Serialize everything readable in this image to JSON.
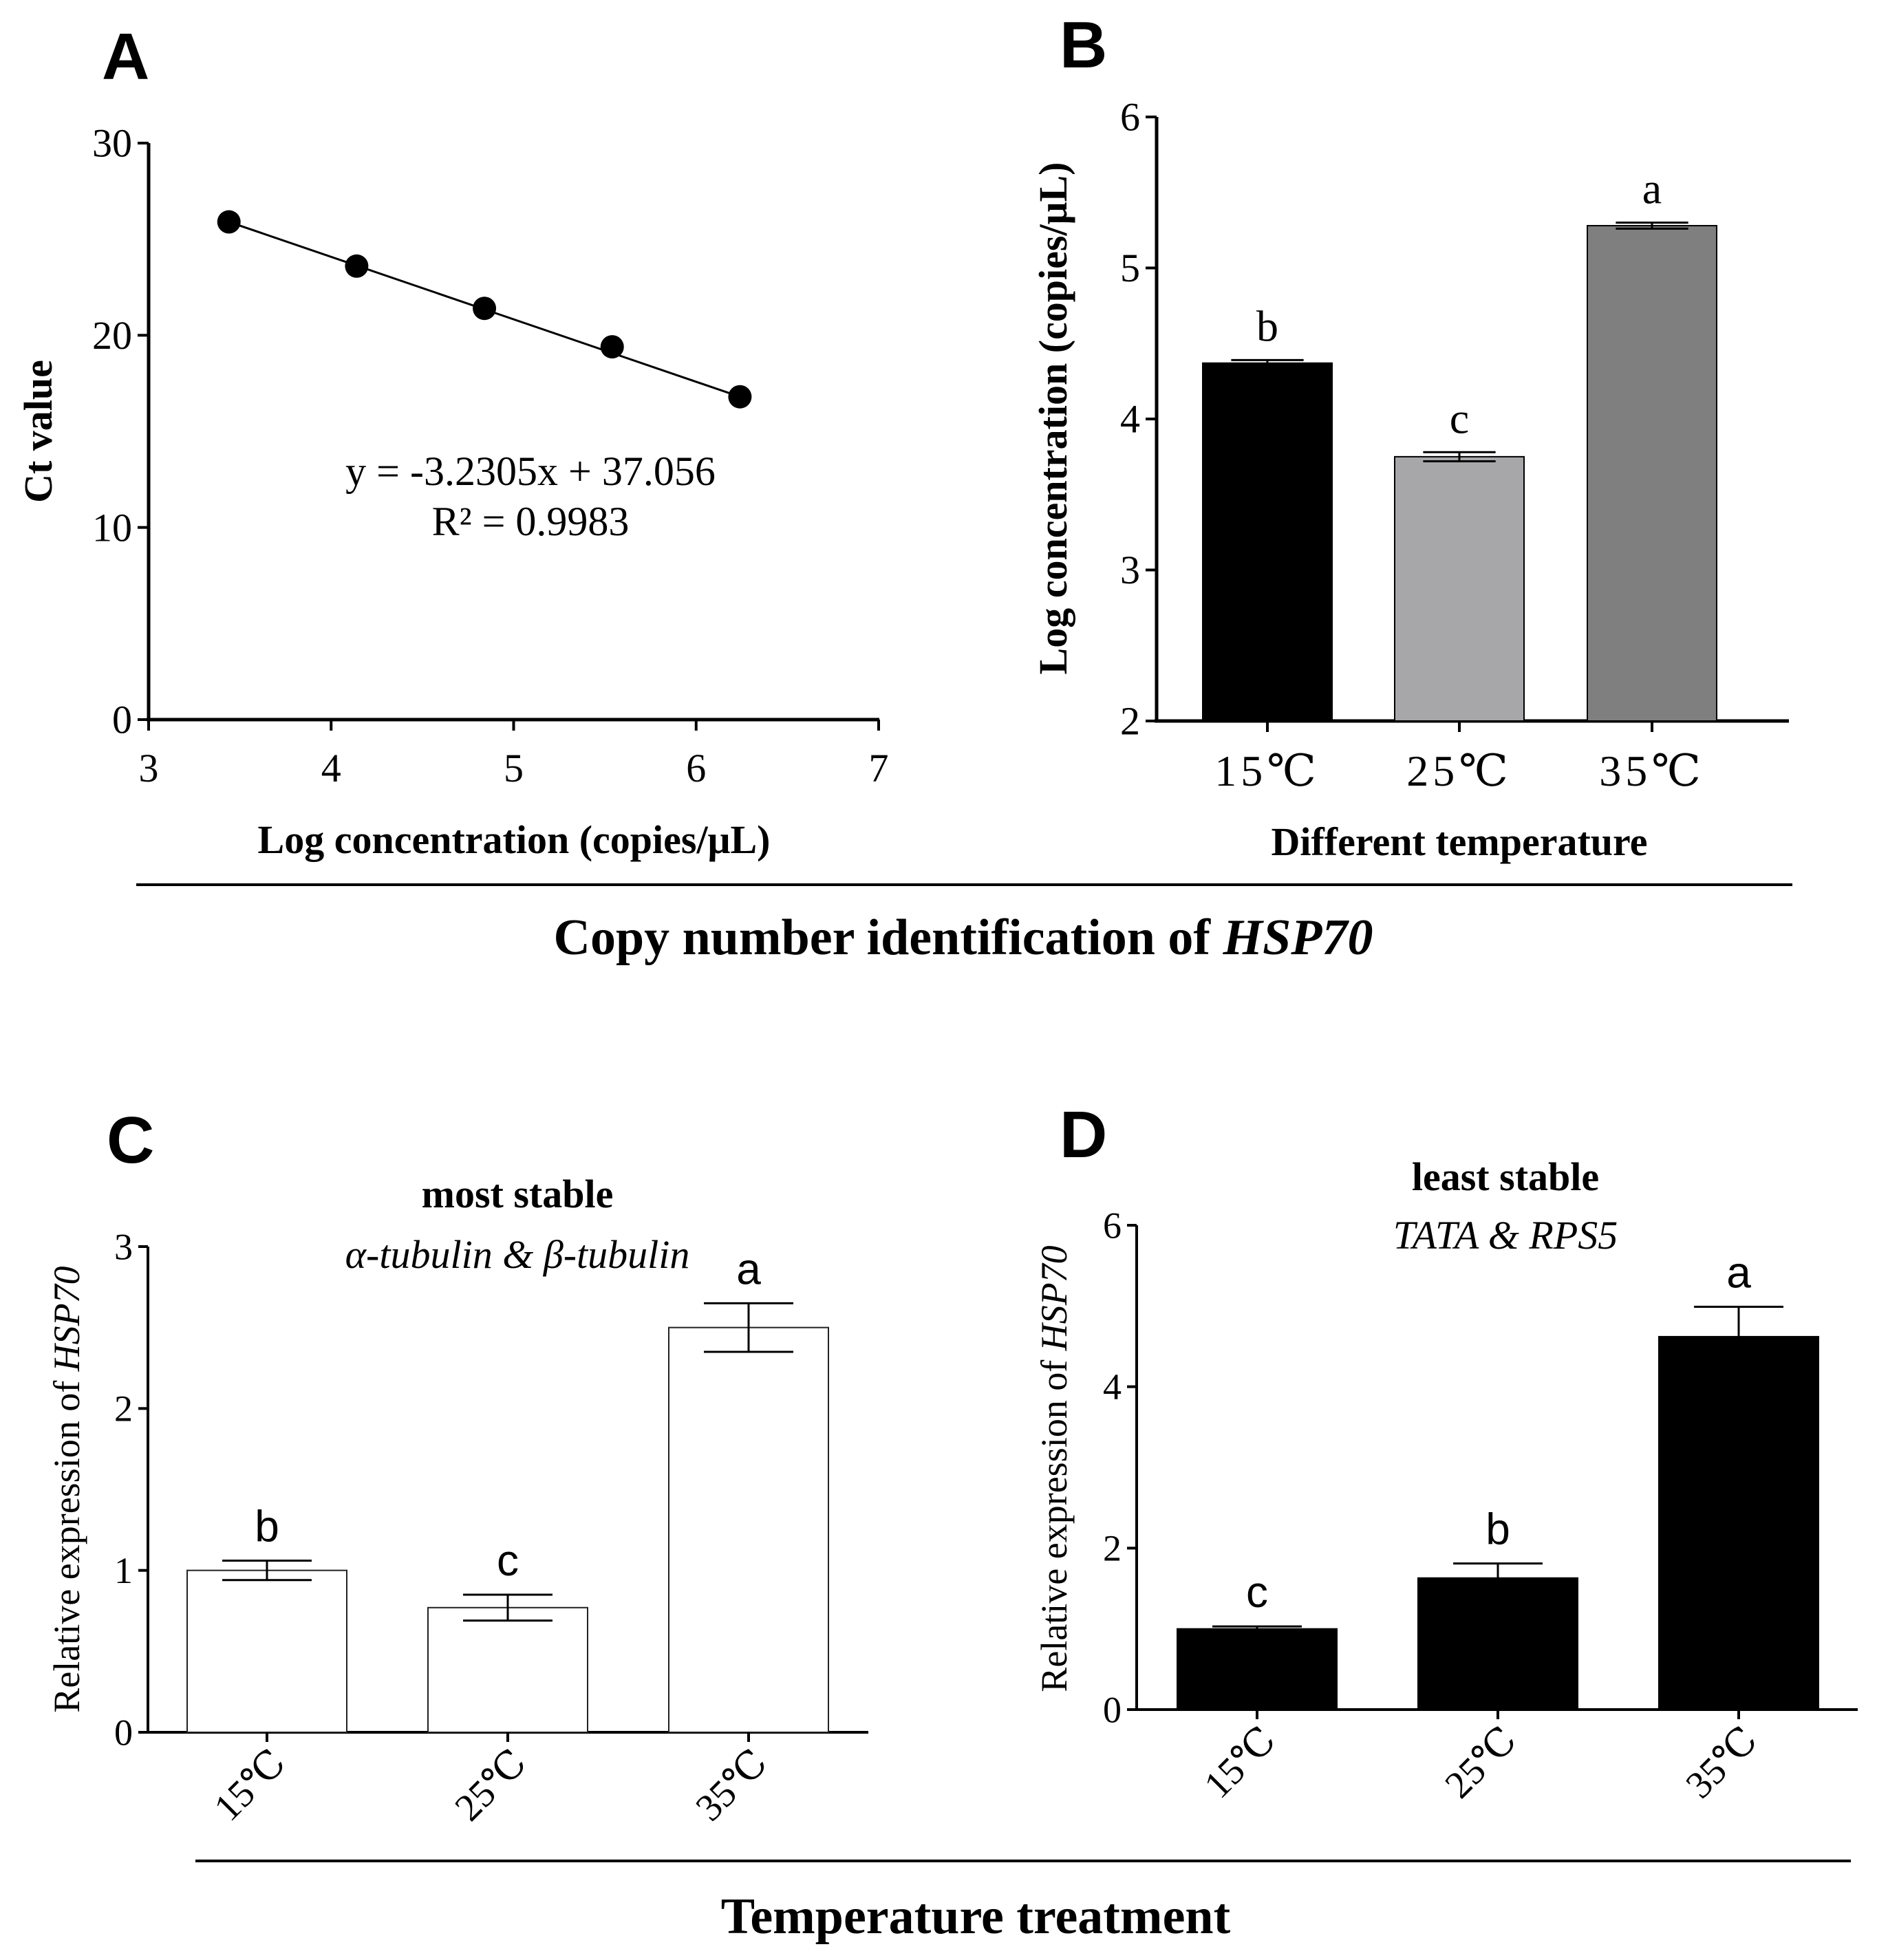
{
  "figure": {
    "top_group_caption": "Copy number identification of ",
    "top_group_caption_gene": "HSP70",
    "bottom_group_caption": "Temperature  treatment"
  },
  "colors": {
    "ink": "#000000",
    "bar_black": "#000000",
    "bar_light_gray": "#a7a7a9",
    "bar_dark_gray": "#7f7f7f",
    "bar_white": "#ffffff"
  },
  "chart_data": [
    {
      "id": "A",
      "panel_label": "A",
      "type": "scatter",
      "xlabel": "Log concentration (copies/μL)",
      "ylabel": "Ct value",
      "xlim": [
        3,
        7
      ],
      "ylim": [
        0,
        30
      ],
      "xticks": [
        3,
        4,
        5,
        6,
        7
      ],
      "yticks": [
        0,
        10,
        20,
        30
      ],
      "x": [
        3.44,
        4.14,
        4.84,
        5.54,
        6.24
      ],
      "y": [
        25.9,
        23.6,
        21.4,
        19.4,
        16.8
      ],
      "fit": {
        "slope": -3.2305,
        "intercept": 37.056
      },
      "annotations": [
        "y = -3.2305x + 37.056",
        "R² = 0.9983"
      ],
      "grid": false
    },
    {
      "id": "B",
      "panel_label": "B",
      "type": "bar",
      "xlabel": "Different temperature",
      "ylabel": "Log concentration (copies/μL)",
      "categories": [
        "15℃",
        "25℃",
        "35℃"
      ],
      "values": [
        4.37,
        3.75,
        5.28
      ],
      "errors": [
        0.02,
        0.03,
        0.02
      ],
      "letters": [
        "b",
        "c",
        "a"
      ],
      "bar_colors": [
        "#000000",
        "#a7a7a9",
        "#7f7f7f"
      ],
      "ylim": [
        2,
        6
      ],
      "yticks": [
        2,
        3,
        4,
        5,
        6
      ],
      "grid": false
    },
    {
      "id": "C",
      "panel_label": "C",
      "type": "bar",
      "title": "most stable",
      "subtitle": "α-tubulin & β-tubulin",
      "ylabel_prefix": "Relative expression of ",
      "ylabel_gene": "HSP70",
      "categories": [
        "15℃",
        "25℃",
        "35℃"
      ],
      "values": [
        1.0,
        0.77,
        2.5
      ],
      "errors": [
        0.06,
        0.08,
        0.15
      ],
      "letters": [
        "b",
        "c",
        "a"
      ],
      "bar_colors": [
        "#ffffff",
        "#ffffff",
        "#ffffff"
      ],
      "ylim": [
        0,
        3
      ],
      "yticks": [
        0,
        1,
        2,
        3
      ],
      "grid": false
    },
    {
      "id": "D",
      "panel_label": "D",
      "type": "bar",
      "title": "least stable",
      "subtitle": "TATA & RPS5",
      "ylabel_prefix": "Relative expression of ",
      "ylabel_gene": "HSP70",
      "categories": [
        "15℃",
        "25℃",
        "35℃"
      ],
      "values": [
        1.0,
        1.63,
        4.62
      ],
      "errors": [
        0.03,
        0.18,
        0.37
      ],
      "letters": [
        "c",
        "b",
        "a"
      ],
      "bar_colors": [
        "#000000",
        "#000000",
        "#000000"
      ],
      "ylim": [
        0,
        6
      ],
      "yticks": [
        0,
        2,
        4,
        6
      ],
      "grid": false
    }
  ]
}
